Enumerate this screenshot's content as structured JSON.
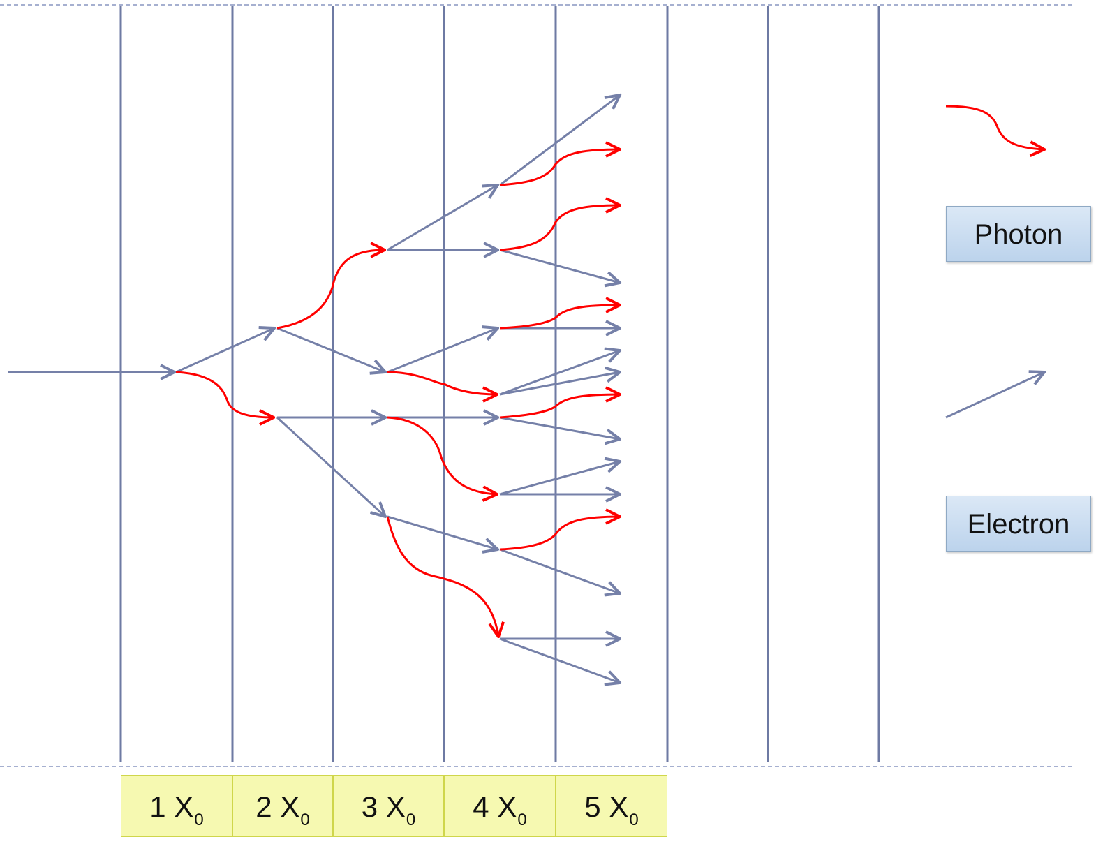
{
  "legend": {
    "photon_label": "Photon",
    "electron_label": "Electron"
  },
  "depth_labels": [
    {
      "num": "1",
      "sym": "X",
      "sub": "0"
    },
    {
      "num": "2",
      "sym": "X",
      "sub": "0"
    },
    {
      "num": "3",
      "sym": "X",
      "sub": "0"
    },
    {
      "num": "4",
      "sym": "X",
      "sub": "0"
    },
    {
      "num": "5",
      "sym": "X",
      "sub": "0"
    }
  ],
  "colors": {
    "electron": "#7580a8",
    "photon": "#ff0000",
    "layer_line": "#6e7aa3",
    "dashed_border": "#8896c0",
    "cell_fill": "#f6f9b1",
    "legend_fill": "#c9dbef"
  },
  "icons": {
    "photon": "wavy-red-arrow-icon",
    "electron": "straight-blue-arrow-icon"
  }
}
